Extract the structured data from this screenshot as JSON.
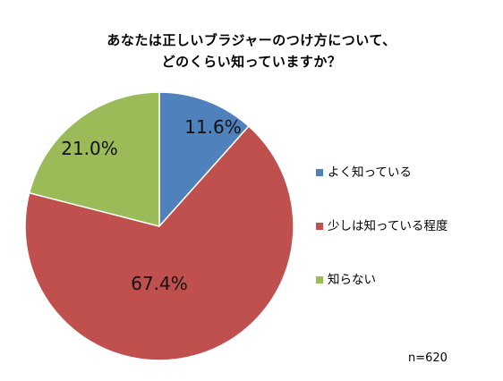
{
  "chart_data": {
    "type": "pie",
    "title": [
      "あなたは正しいブラジャーのつけ方について、",
      "どのくらい知っていますか？"
    ],
    "slices": [
      {
        "label": "よく知っている",
        "value": 11.6,
        "value_label": "11.6%",
        "color": "#4f81bd"
      },
      {
        "label": "少しは知っている程度",
        "value": 67.4,
        "value_label": "67.4%",
        "color": "#c0504d"
      },
      {
        "label": "知らない",
        "value": 21.0,
        "value_label": "21.0%",
        "color": "#9bbb59"
      }
    ],
    "legend_position": "right",
    "note": "n=620"
  }
}
